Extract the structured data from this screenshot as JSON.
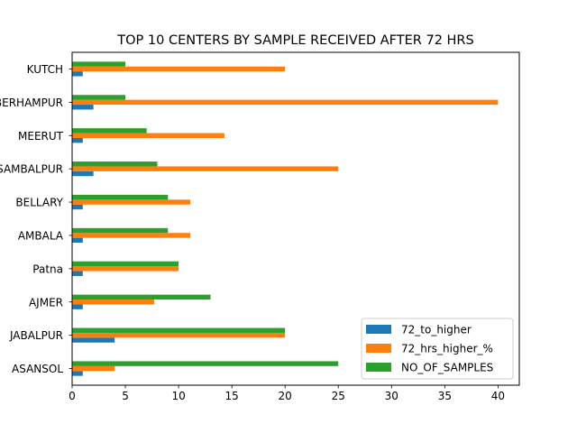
{
  "chart_data": {
    "type": "bar",
    "orientation": "horizontal",
    "title": "TOP 10 CENTERS BY SAMPLE RECEIVED AFTER 72 HRS",
    "xlabel": "",
    "ylabel": "",
    "xlim": [
      0,
      42
    ],
    "xticks": [
      0,
      5,
      10,
      15,
      20,
      25,
      30,
      35,
      40
    ],
    "categories": [
      "ASANSOL",
      "JABALPUR",
      "AJMER",
      "Patna",
      "AMBALA ",
      "BELLARY",
      "SAMBALPUR",
      "MEERUT",
      "BERHAMPUR",
      "KUTCH"
    ],
    "series": [
      {
        "name": "72_to_higher",
        "color": "#1f77b4",
        "values": [
          1,
          4,
          1,
          1,
          1,
          1,
          2,
          1,
          2,
          1
        ]
      },
      {
        "name": "72_hrs_higher_%",
        "color": "#ff7f0e",
        "values": [
          4.0,
          20.0,
          7.7,
          10.0,
          11.1,
          11.1,
          25.0,
          14.3,
          40.0,
          20.0
        ]
      },
      {
        "name": "NO_OF_SAMPLES",
        "color": "#2ca02c",
        "values": [
          25,
          20,
          13,
          10,
          9,
          9,
          8,
          7,
          5,
          5
        ]
      }
    ],
    "legend": "lower-right",
    "grid": false
  }
}
